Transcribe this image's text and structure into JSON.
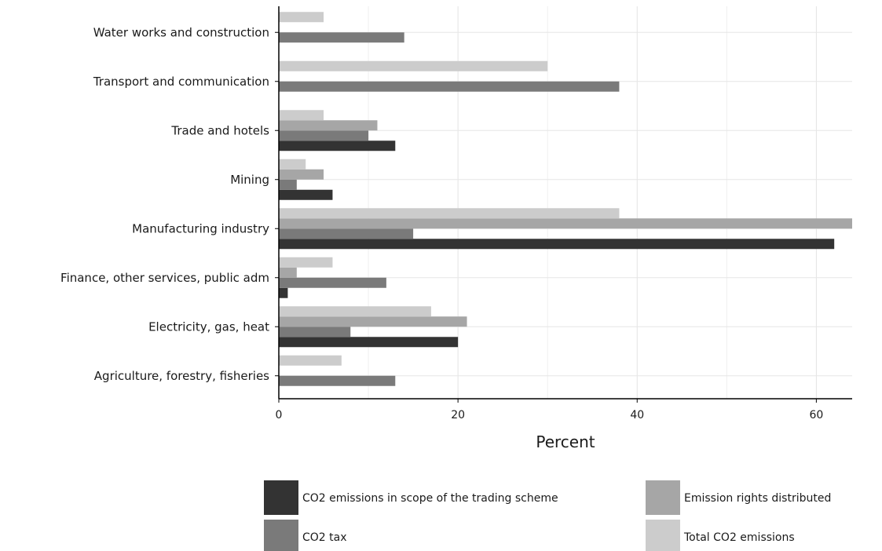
{
  "chart_data": {
    "type": "bar",
    "orientation": "horizontal",
    "title": "",
    "xlabel": "Percent",
    "ylabel": "",
    "xlim": [
      0,
      64
    ],
    "xticks": [
      0,
      20,
      40,
      60
    ],
    "grid": true,
    "legend_position": "bottom",
    "categories": [
      "Water works and construction",
      "Transport and communication",
      "Trade and hotels",
      "Mining",
      "Manufacturing industry",
      "Finance, other services, public adm",
      "Electricity, gas, heat",
      "Agriculture, forestry, fisheries"
    ],
    "series": [
      {
        "name": "CO2 emissions in scope of the trading scheme",
        "color": "#333333",
        "values": [
          0,
          0,
          13,
          6,
          62,
          1,
          20,
          0
        ]
      },
      {
        "name": "CO2 tax",
        "color": "#7a7a7a",
        "values": [
          14,
          38,
          10,
          2,
          15,
          12,
          8,
          13
        ]
      },
      {
        "name": "Emission rights distributed",
        "color": "#a6a6a6",
        "values": [
          0,
          0,
          11,
          5,
          64,
          2,
          21,
          0
        ]
      },
      {
        "name": "Total CO2 emissions",
        "color": "#cccccc",
        "values": [
          5,
          30,
          5,
          3,
          38,
          6,
          17,
          7
        ]
      }
    ]
  }
}
